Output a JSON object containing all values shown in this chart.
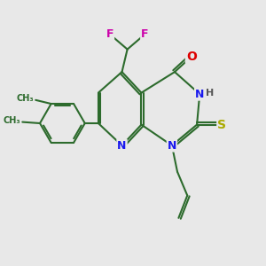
{
  "bg_color": "#e8e8e8",
  "bond_color": "#2d6b2d",
  "bond_width": 1.5,
  "atom_colors": {
    "N": "#1a1aee",
    "O": "#dd0000",
    "S": "#aaaa00",
    "F": "#cc00aa",
    "H": "#555555",
    "C": "#2d6b2d"
  },
  "font_size": 9
}
